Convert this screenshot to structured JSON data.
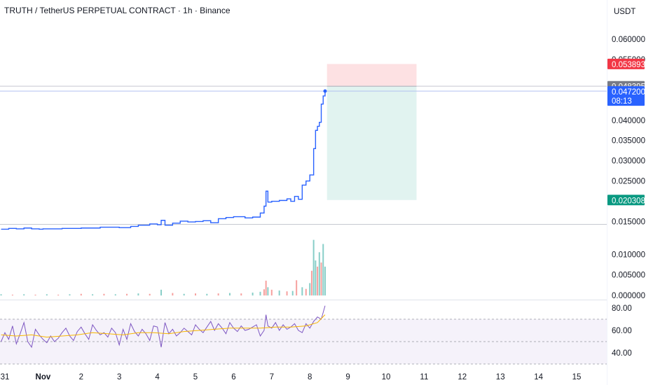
{
  "header": {
    "title": "TRUTH / TetherUS PERPETUAL CONTRACT · 1h · Binance",
    "currency": "USDT"
  },
  "colors": {
    "price_line": "#2962ff",
    "up": "#26a69a",
    "down": "#ef5350",
    "rsi": "#7e57c2",
    "rsi_ma": "#f7b500",
    "stop_tag": "#f23645",
    "last_tag": "#787b86",
    "price_tag": "#2962ff",
    "target_tag": "#089981"
  },
  "chart_data": [
    {
      "type": "line",
      "title": "TRUTH / TetherUS PERPETUAL CONTRACT · 1h · Binance",
      "x_tick_labels": [
        "31",
        "Nov",
        "2",
        "3",
        "4",
        "5",
        "6",
        "7",
        "8",
        "9",
        "10",
        "11",
        "12",
        "13",
        "14",
        "15"
      ],
      "y_tick_labels": [
        "0.060000",
        "0.055000",
        "0.040000",
        "0.035000",
        "0.030000",
        "0.025000",
        "0.015000"
      ],
      "ylim": [
        0.0118,
        0.0645
      ],
      "series": [
        {
          "x": [
            30.9,
            31.1,
            31.3,
            31.5,
            31.7,
            31.9,
            32.0,
            32.5,
            33.0,
            33.5,
            34.0,
            34.3,
            34.5,
            34.8,
            35.0,
            35.1,
            35.2,
            35.4,
            35.6,
            35.8,
            36.0,
            36.2,
            36.4,
            36.6,
            36.8,
            37.0,
            37.3,
            37.5,
            37.7,
            37.8,
            37.85,
            37.9,
            38.0,
            38.2,
            38.4,
            38.5,
            38.6,
            38.7,
            38.8,
            38.9,
            39.0,
            39.1,
            39.15,
            39.2,
            39.25,
            39.3,
            39.35,
            39.4
          ],
          "y": [
            0.0131,
            0.0133,
            0.0132,
            0.0134,
            0.0132,
            0.0131,
            0.0132,
            0.0133,
            0.0134,
            0.0136,
            0.0135,
            0.0138,
            0.0141,
            0.0144,
            0.0142,
            0.0153,
            0.0141,
            0.0146,
            0.0151,
            0.0149,
            0.015,
            0.0152,
            0.0147,
            0.0157,
            0.016,
            0.0162,
            0.0159,
            0.0161,
            0.0171,
            0.0188,
            0.0225,
            0.0198,
            0.02,
            0.0202,
            0.0206,
            0.02,
            0.0212,
            0.0205,
            0.024,
            0.025,
            0.0265,
            0.033,
            0.0375,
            0.0385,
            0.0395,
            0.044,
            0.046,
            0.0472
          ]
        }
      ],
      "position_tool": {
        "entry": 0.048395,
        "stop": 0.053893,
        "target": 0.020308,
        "x_start": 39.45,
        "x_end": 41.8
      },
      "hlines": [
        0.0484,
        0.0472,
        0.0143
      ],
      "price_tags": [
        "0.053893",
        "0.048395",
        "0.047200",
        "08:13",
        "0.020308"
      ]
    },
    {
      "type": "bar",
      "title": "",
      "y_tick_labels": [
        "0.010000",
        "0.005000",
        "0.000000"
      ],
      "ylim": [
        -0.001,
        0.0148
      ],
      "note": "volume bars, mostly small; spikes near Nov 8 and Nov 9",
      "x": [
        30.9,
        31.2,
        31.5,
        31.8,
        32.1,
        32.4,
        32.7,
        33.0,
        33.3,
        33.6,
        33.9,
        34.2,
        34.5,
        34.8,
        35.1,
        35.4,
        35.7,
        36.0,
        36.3,
        36.6,
        36.9,
        37.2,
        37.5,
        37.7,
        37.8,
        37.85,
        37.9,
        38.0,
        38.2,
        38.4,
        38.55,
        38.65,
        38.8,
        38.9,
        39.0,
        39.05,
        39.1,
        39.15,
        39.2,
        39.25,
        39.3,
        39.35,
        39.4
      ],
      "values": [
        0.0003,
        0.0002,
        0.0003,
        0.0002,
        0.0003,
        0.0002,
        0.0003,
        0.0004,
        0.0003,
        0.0004,
        0.0003,
        0.0004,
        0.0005,
        0.0004,
        0.0014,
        0.0006,
        0.0004,
        0.0005,
        0.0004,
        0.0005,
        0.0006,
        0.0005,
        0.0007,
        0.0009,
        0.0015,
        0.0036,
        0.002,
        0.0014,
        0.0012,
        0.001,
        0.0011,
        0.0037,
        0.002,
        0.0016,
        0.003,
        0.006,
        0.0135,
        0.0085,
        0.007,
        0.0105,
        0.008,
        0.0125,
        0.007
      ],
      "directions": [
        "up",
        "down",
        "up",
        "down",
        "up",
        "down",
        "up",
        "down",
        "up",
        "down",
        "up",
        "down",
        "up",
        "down",
        "up",
        "down",
        "up",
        "down",
        "up",
        "down",
        "up",
        "down",
        "up",
        "up",
        "down",
        "down",
        "up",
        "down",
        "up",
        "down",
        "up",
        "down",
        "up",
        "down",
        "up",
        "down",
        "up",
        "up",
        "down",
        "up",
        "down",
        "up",
        "up"
      ]
    },
    {
      "type": "line",
      "title": "",
      "y_tick_labels": [
        "80.00",
        "60.00",
        "40.00"
      ],
      "ylim": [
        30,
        85
      ],
      "band": [
        70,
        30
      ],
      "series": [
        {
          "x": [
            30.9,
            31.0,
            31.1,
            31.2,
            31.3,
            31.4,
            31.5,
            31.6,
            31.7,
            31.8,
            31.9,
            32.0,
            32.1,
            32.2,
            32.3,
            32.4,
            32.5,
            32.6,
            32.7,
            32.8,
            32.9,
            33.0,
            33.1,
            33.2,
            33.3,
            33.4,
            33.5,
            33.6,
            33.7,
            33.8,
            33.9,
            34.0,
            34.1,
            34.2,
            34.3,
            34.4,
            34.5,
            34.6,
            34.7,
            34.8,
            34.9,
            35.0,
            35.1,
            35.2,
            35.3,
            35.4,
            35.5,
            35.6,
            35.7,
            35.8,
            35.9,
            36.0,
            36.1,
            36.2,
            36.3,
            36.4,
            36.5,
            36.6,
            36.7,
            36.8,
            36.9,
            37.0,
            37.1,
            37.2,
            37.3,
            37.4,
            37.5,
            37.6,
            37.7,
            37.8,
            37.85,
            37.9,
            38.0,
            38.1,
            38.2,
            38.3,
            38.4,
            38.5,
            38.6,
            38.7,
            38.8,
            38.9,
            39.0,
            39.1,
            39.2,
            39.3,
            39.4
          ],
          "y": [
            50,
            58,
            52,
            64,
            48,
            57,
            67,
            50,
            45,
            61,
            56,
            52,
            49,
            55,
            50,
            53,
            58,
            62,
            55,
            51,
            59,
            63,
            57,
            52,
            65,
            60,
            56,
            58,
            54,
            62,
            58,
            47,
            61,
            52,
            66,
            59,
            55,
            61,
            57,
            51,
            64,
            63,
            45,
            67,
            57,
            61,
            55,
            58,
            62,
            59,
            56,
            65,
            61,
            58,
            63,
            68,
            60,
            66,
            62,
            57,
            67,
            62,
            59,
            64,
            60,
            61,
            63,
            65,
            55,
            60,
            74,
            64,
            62,
            67,
            60,
            65,
            61,
            63,
            66,
            60,
            58,
            66,
            62,
            68,
            72,
            70,
            82
          ]
        },
        {
          "x": [
            30.9,
            31.3,
            31.7,
            32.1,
            32.5,
            32.9,
            33.3,
            33.7,
            34.1,
            34.5,
            34.9,
            35.3,
            35.7,
            36.1,
            36.5,
            36.9,
            37.3,
            37.7,
            38.1,
            38.5,
            38.9,
            39.2,
            39.4
          ],
          "y": [
            56,
            55,
            56,
            54,
            55,
            56,
            58,
            57,
            56,
            58,
            58,
            57,
            59,
            60,
            61,
            62,
            62,
            62,
            63,
            63,
            64,
            67,
            74
          ]
        }
      ]
    }
  ]
}
